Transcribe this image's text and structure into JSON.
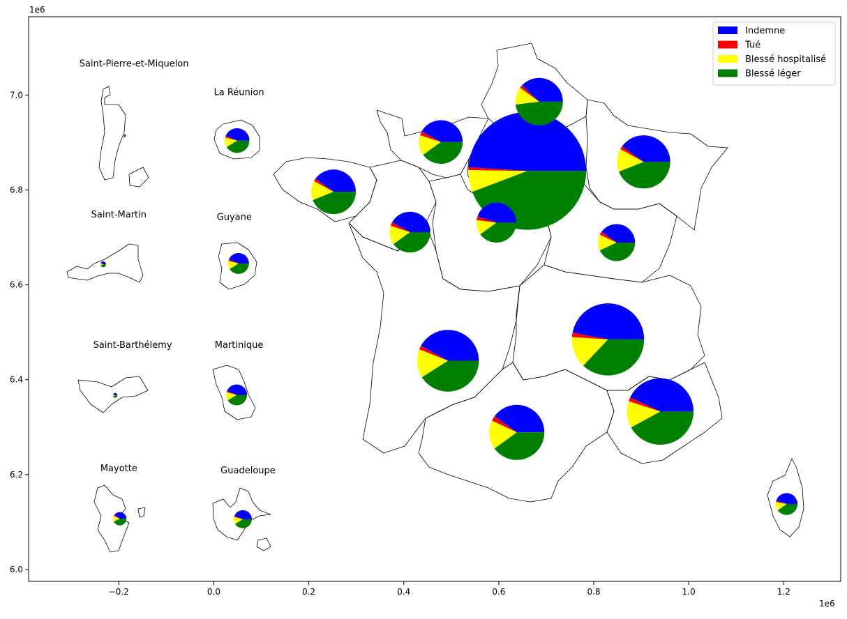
{
  "chart_data": {
    "type": "pie",
    "title": "",
    "x_exponent_label": "1e6",
    "y_exponent_label": "1e6",
    "xlim": [
      -0.39,
      1.32
    ],
    "ylim": [
      5.975,
      7.165
    ],
    "x_ticks": [
      -0.2,
      0.0,
      0.2,
      0.4,
      0.6,
      0.8,
      1.0,
      1.2
    ],
    "x_tick_labels": [
      "−0.2",
      "0.0",
      "0.2",
      "0.4",
      "0.6",
      "0.8",
      "1.0",
      "1.2"
    ],
    "y_ticks": [
      6.0,
      6.2,
      6.4,
      6.6,
      6.8,
      7.0
    ],
    "y_tick_labels": [
      "6.0",
      "6.2",
      "6.4",
      "6.6",
      "6.8",
      "7.0"
    ],
    "legend_position": "top-right",
    "categories": [
      "Indemne",
      "Tué",
      "Blessé hospitalisé",
      "Blessé léger"
    ],
    "colors": [
      "#0000ff",
      "#ff0000",
      "#ffff00",
      "#008000"
    ],
    "pies": [
      {
        "cx": 0.66,
        "cy": 6.84,
        "r": 0.124,
        "values": [
          49.0,
          0.8,
          6.0,
          44.2
        ]
      },
      {
        "cx": 0.685,
        "cy": 6.986,
        "r": 0.05,
        "values": [
          38.0,
          2.0,
          12.0,
          48.0
        ]
      },
      {
        "cx": 0.478,
        "cy": 6.901,
        "r": 0.046,
        "values": [
          42.0,
          3.0,
          15.0,
          40.0
        ]
      },
      {
        "cx": 0.252,
        "cy": 6.796,
        "r": 0.047,
        "values": [
          40.0,
          2.0,
          14.0,
          44.0
        ]
      },
      {
        "cx": 0.905,
        "cy": 6.859,
        "r": 0.056,
        "values": [
          40.0,
          2.0,
          14.0,
          44.0
        ]
      },
      {
        "cx": 0.413,
        "cy": 6.711,
        "r": 0.043,
        "values": [
          42.0,
          3.0,
          15.0,
          40.0
        ]
      },
      {
        "cx": 0.595,
        "cy": 6.731,
        "r": 0.042,
        "values": [
          45.0,
          3.0,
          12.0,
          40.0
        ]
      },
      {
        "cx": 0.848,
        "cy": 6.689,
        "r": 0.039,
        "values": [
          40.0,
          3.0,
          14.0,
          43.0
        ]
      },
      {
        "cx": 0.83,
        "cy": 6.485,
        "r": 0.076,
        "values": [
          47.0,
          2.0,
          14.0,
          37.0
        ]
      },
      {
        "cx": 0.493,
        "cy": 6.44,
        "r": 0.065,
        "values": [
          42.0,
          2.0,
          15.0,
          41.0
        ]
      },
      {
        "cx": 0.638,
        "cy": 6.289,
        "r": 0.058,
        "values": [
          40.0,
          3.0,
          17.0,
          40.0
        ]
      },
      {
        "cx": 0.94,
        "cy": 6.333,
        "r": 0.07,
        "values": [
          43.0,
          2.0,
          13.0,
          42.0
        ]
      },
      {
        "cx": 1.206,
        "cy": 6.138,
        "r": 0.023,
        "values": [
          45.0,
          2.0,
          13.0,
          40.0
        ]
      },
      {
        "cx": 0.049,
        "cy": 6.904,
        "r": 0.026,
        "values": [
          44.0,
          2.0,
          13.0,
          41.0
        ]
      },
      {
        "cx": 0.052,
        "cy": 6.645,
        "r": 0.022,
        "values": [
          44.0,
          2.0,
          13.0,
          41.0
        ]
      },
      {
        "cx": 0.048,
        "cy": 6.368,
        "r": 0.022,
        "values": [
          44.0,
          2.0,
          13.0,
          41.0
        ]
      },
      {
        "cx": 0.061,
        "cy": 6.106,
        "r": 0.019,
        "values": [
          44.0,
          2.0,
          13.0,
          41.0
        ]
      },
      {
        "cx": -0.198,
        "cy": 6.107,
        "r": 0.014,
        "values": [
          40.0,
          3.0,
          14.0,
          43.0
        ]
      },
      {
        "cx": -0.233,
        "cy": 6.643,
        "r": 0.006,
        "values": [
          40.0,
          3.0,
          14.0,
          43.0
        ]
      },
      {
        "cx": -0.208,
        "cy": 6.367,
        "r": 0.005,
        "values": [
          40.0,
          3.0,
          14.0,
          43.0
        ]
      },
      {
        "cx": -0.188,
        "cy": 6.914,
        "r": 0.003,
        "values": [
          40.0,
          3.0,
          14.0,
          43.0
        ]
      }
    ],
    "annotations": [
      {
        "text": "Saint-Pierre-et-Miquelon",
        "x": -0.168,
        "y": 7.06
      },
      {
        "text": "La Réunion",
        "x": 0.053,
        "y": 7.0
      },
      {
        "text": "Saint-Martin",
        "x": -0.2,
        "y": 6.742
      },
      {
        "text": "Guyane",
        "x": 0.043,
        "y": 6.737
      },
      {
        "text": "Saint-Barthélemy",
        "x": -0.171,
        "y": 6.467
      },
      {
        "text": "Martinique",
        "x": 0.053,
        "y": 6.467
      },
      {
        "text": "Mayotte",
        "x": -0.2,
        "y": 6.207
      },
      {
        "text": "Guadeloupe",
        "x": 0.072,
        "y": 6.203
      }
    ]
  }
}
